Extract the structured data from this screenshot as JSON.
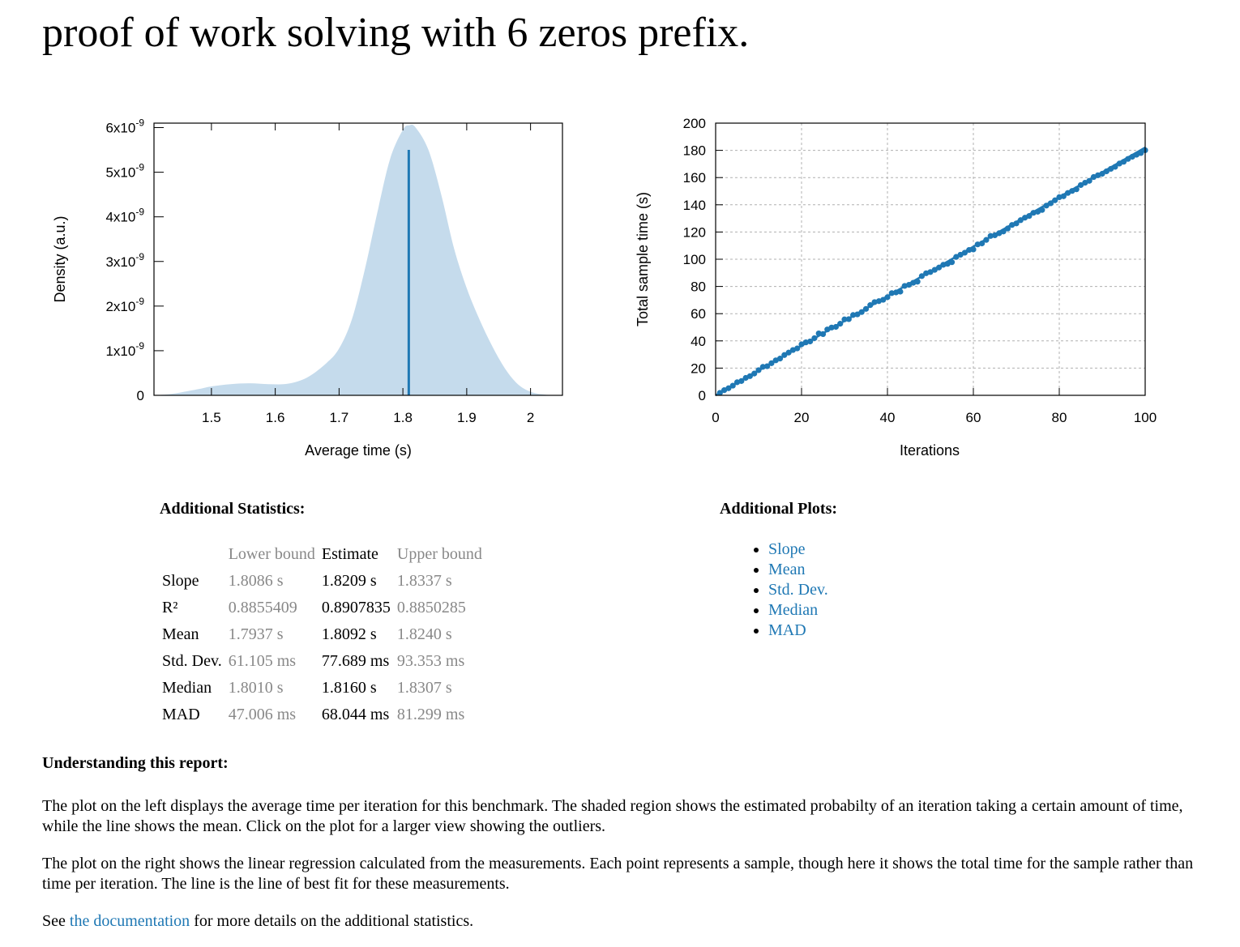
{
  "page": {
    "title": "proof of work solving with 6 zeros prefix."
  },
  "chart_data": [
    {
      "type": "area",
      "xlabel": "Average time (s)",
      "ylabel": "Density (a.u.)",
      "xlim": [
        1.41,
        2.05
      ],
      "ylim": [
        0,
        6.1e-09
      ],
      "x_ticks": [
        1.5,
        1.6,
        1.7,
        1.8,
        1.9,
        2
      ],
      "x_tick_labels": [
        "1.5",
        "1.6",
        "1.7",
        "1.8",
        "1.9",
        "2"
      ],
      "y_ticks": [
        0,
        1e-09,
        2e-09,
        3e-09,
        4e-09,
        5e-09,
        6e-09
      ],
      "y_tick_labels": [
        {
          "base": "0",
          "exp": ""
        },
        {
          "base": "1x10",
          "exp": "-9"
        },
        {
          "base": "2x10",
          "exp": "-9"
        },
        {
          "base": "3x10",
          "exp": "-9"
        },
        {
          "base": "4x10",
          "exp": "-9"
        },
        {
          "base": "5x10",
          "exp": "-9"
        },
        {
          "base": "6x10",
          "exp": "-9"
        }
      ],
      "grid": false,
      "density": {
        "x": [
          1.41,
          1.43,
          1.45,
          1.48,
          1.5,
          1.53,
          1.56,
          1.59,
          1.62,
          1.65,
          1.68,
          1.7,
          1.72,
          1.74,
          1.76,
          1.78,
          1.8,
          1.81,
          1.82,
          1.84,
          1.86,
          1.88,
          1.9,
          1.92,
          1.94,
          1.96,
          1.98,
          2.0,
          2.02,
          2.04
        ],
        "y": [
          0,
          2e-11,
          6e-11,
          1.4e-10,
          2e-10,
          2.5e-10,
          2.7e-10,
          2.5e-10,
          2.6e-10,
          4e-10,
          7.2e-10,
          1.05e-09,
          1.7e-09,
          2.8e-09,
          4.1e-09,
          5.3e-09,
          5.95e-09,
          6.05e-09,
          6e-09,
          5.5e-09,
          4.5e-09,
          3.3e-09,
          2.4e-09,
          1.7e-09,
          1.1e-09,
          6e-10,
          2.5e-10,
          8e-11,
          2e-11,
          0
        ]
      },
      "mean": 1.8092,
      "mean_height": 5.5e-09,
      "colors": {
        "fill": "#c5dbec",
        "mean_line": "#1f78b4"
      }
    },
    {
      "type": "scatter",
      "xlabel": "Iterations",
      "ylabel": "Total sample time (s)",
      "xlim": [
        0,
        100
      ],
      "ylim": [
        0,
        200
      ],
      "x_ticks": [
        0,
        20,
        40,
        60,
        80,
        100
      ],
      "x_tick_labels": [
        "0",
        "20",
        "40",
        "60",
        "80",
        "100"
      ],
      "y_ticks": [
        0,
        20,
        40,
        60,
        80,
        100,
        120,
        140,
        160,
        180,
        200
      ],
      "y_tick_labels": [
        "0",
        "20",
        "40",
        "60",
        "80",
        "100",
        "120",
        "140",
        "160",
        "180",
        "200"
      ],
      "grid": true,
      "slope": 1.8209,
      "points_y": [
        1.8,
        3.8,
        5.2,
        7.1,
        9.6,
        10.5,
        12.8,
        14.1,
        16.0,
        18.5,
        20.9,
        21.4,
        23.6,
        25.7,
        27.0,
        29.6,
        31.4,
        33.3,
        34.5,
        37.5,
        38.9,
        39.6,
        42.0,
        45.5,
        45.0,
        48.4,
        49.8,
        50.3,
        52.6,
        55.8,
        56.0,
        59.0,
        59.5,
        61.2,
        63.5,
        66.3,
        68.5,
        69.2,
        70.2,
        72.1,
        75.1,
        75.6,
        76.2,
        80.4,
        81.2,
        82.7,
        83.5,
        87.6,
        89.7,
        90.6,
        92.2,
        93.9,
        95.9,
        96.6,
        97.8,
        101.7,
        103.3,
        104.8,
        106.8,
        107.2,
        110.9,
        111.6,
        114.2,
        117.1,
        117.6,
        119.1,
        120.4,
        122.6,
        125.2,
        126.3,
        128.7,
        130.5,
        131.8,
        134.1,
        134.9,
        136.2,
        139.4,
        141.1,
        143.3,
        145.6,
        146.3,
        148.7,
        150.2,
        151.4,
        154.5,
        156.2,
        157.6,
        160.4,
        161.7,
        162.8,
        164.6,
        166.4,
        167.9,
        170.3,
        171.6,
        173.7,
        175.3,
        176.8,
        178.0,
        180.1
      ],
      "colors": {
        "points": "#1f78b4",
        "fit_line": "#1f78b4",
        "grid": "#b0b0b0"
      }
    }
  ],
  "additional_statistics": {
    "heading": "Additional Statistics:",
    "columns": [
      "",
      "Lower bound",
      "Estimate",
      "Upper bound"
    ],
    "rows": [
      {
        "name": "Slope",
        "lower": "1.8086 s",
        "estimate": "1.8209 s",
        "upper": "1.8337 s"
      },
      {
        "name": "R²",
        "lower": "0.8855409",
        "estimate": "0.8907835",
        "upper": "0.8850285"
      },
      {
        "name": "Mean",
        "lower": "1.7937 s",
        "estimate": "1.8092 s",
        "upper": "1.8240 s"
      },
      {
        "name": "Std. Dev.",
        "lower": "61.105 ms",
        "estimate": "77.689 ms",
        "upper": "93.353 ms"
      },
      {
        "name": "Median",
        "lower": "1.8010 s",
        "estimate": "1.8160 s",
        "upper": "1.8307 s"
      },
      {
        "name": "MAD",
        "lower": "47.006 ms",
        "estimate": "68.044 ms",
        "upper": "81.299 ms"
      }
    ]
  },
  "additional_plots": {
    "heading": "Additional Plots:",
    "links": [
      "Slope",
      "Mean",
      "Std. Dev.",
      "Median",
      "MAD"
    ]
  },
  "understanding": {
    "heading": "Understanding this report:",
    "para1": "The plot on the left displays the average time per iteration for this benchmark. The shaded region shows the estimated probabilty of an iteration taking a certain amount of time, while the line shows the mean. Click on the plot for a larger view showing the outliers.",
    "para2": "The plot on the right shows the linear regression calculated from the measurements. Each point represents a sample, though here it shows the total time for the sample rather than time per iteration. The line is the line of best fit for these measurements.",
    "para3_before": "See ",
    "para3_link": "the documentation",
    "para3_after": " for more details on the additional statistics."
  }
}
